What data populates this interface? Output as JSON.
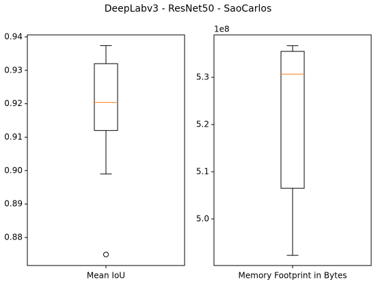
{
  "title": "DeepLabv3 - ResNet50 - SaoCarlos",
  "chart_data": [
    {
      "type": "box",
      "categories": [
        "Mean IoU"
      ],
      "boxes": [
        {
          "whislo": 0.899,
          "q1": 0.912,
          "med": 0.9204,
          "q3": 0.932,
          "whishi": 0.9374,
          "fliers": [
            0.8749
          ]
        }
      ],
      "box_color": "#000000",
      "median_color": "#ff7f0e",
      "ylim": [
        0.8716,
        0.9406
      ],
      "yticks": [
        0.88,
        0.89,
        {
          "value": 0.9,
          "label": "0.90"
        },
        0.91,
        0.92,
        0.93,
        0.94
      ]
    },
    {
      "type": "box",
      "categories": [
        "Memory Footprint in Bytes"
      ],
      "boxes": [
        {
          "whislo": 4.923,
          "q1": 5.065,
          "med": 5.307,
          "q3": 5.355,
          "whishi": 5.367,
          "fliers": []
        }
      ],
      "box_color": "#000000",
      "median_color": "#ff7f0e",
      "offset_label": "1e8",
      "ylim": [
        4.9014,
        5.3899
      ],
      "yticks": [
        {
          "value": 5.0,
          "label": "5.0"
        },
        {
          "value": 5.1,
          "label": "5.1"
        },
        {
          "value": 5.2,
          "label": "5.2"
        },
        {
          "value": 5.3,
          "label": "5.3"
        }
      ]
    }
  ]
}
